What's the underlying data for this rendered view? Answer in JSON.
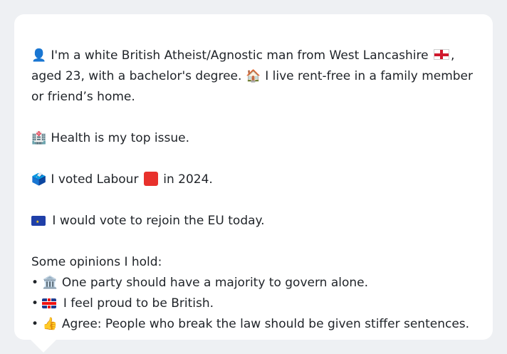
{
  "profile": {
    "intro_line": "I'm a white British Atheist/Agnostic man from West Lancashire",
    "intro_rest": ", aged 23, with a bachelor's degree.",
    "home_text": "I live rent-free in a family member or friend’s home.",
    "health_text": "Health is my top issue.",
    "vote_prefix": "I voted Labour",
    "vote_suffix": "in 2024.",
    "eu_text": "I would vote to rejoin the EU today.",
    "opinions_heading": "Some opinions I hold:",
    "opinions": [
      "One party should have a majority to govern alone.",
      "I feel proud to be British.",
      "Agree: People who break the law should be given stiffer sentences."
    ],
    "bullet": "•"
  },
  "icons": {
    "person": "👤",
    "house": "🏠",
    "hospital": "🏥",
    "ballot": "🗳️",
    "bank": "🏛️",
    "thumbs_up": "👍"
  }
}
